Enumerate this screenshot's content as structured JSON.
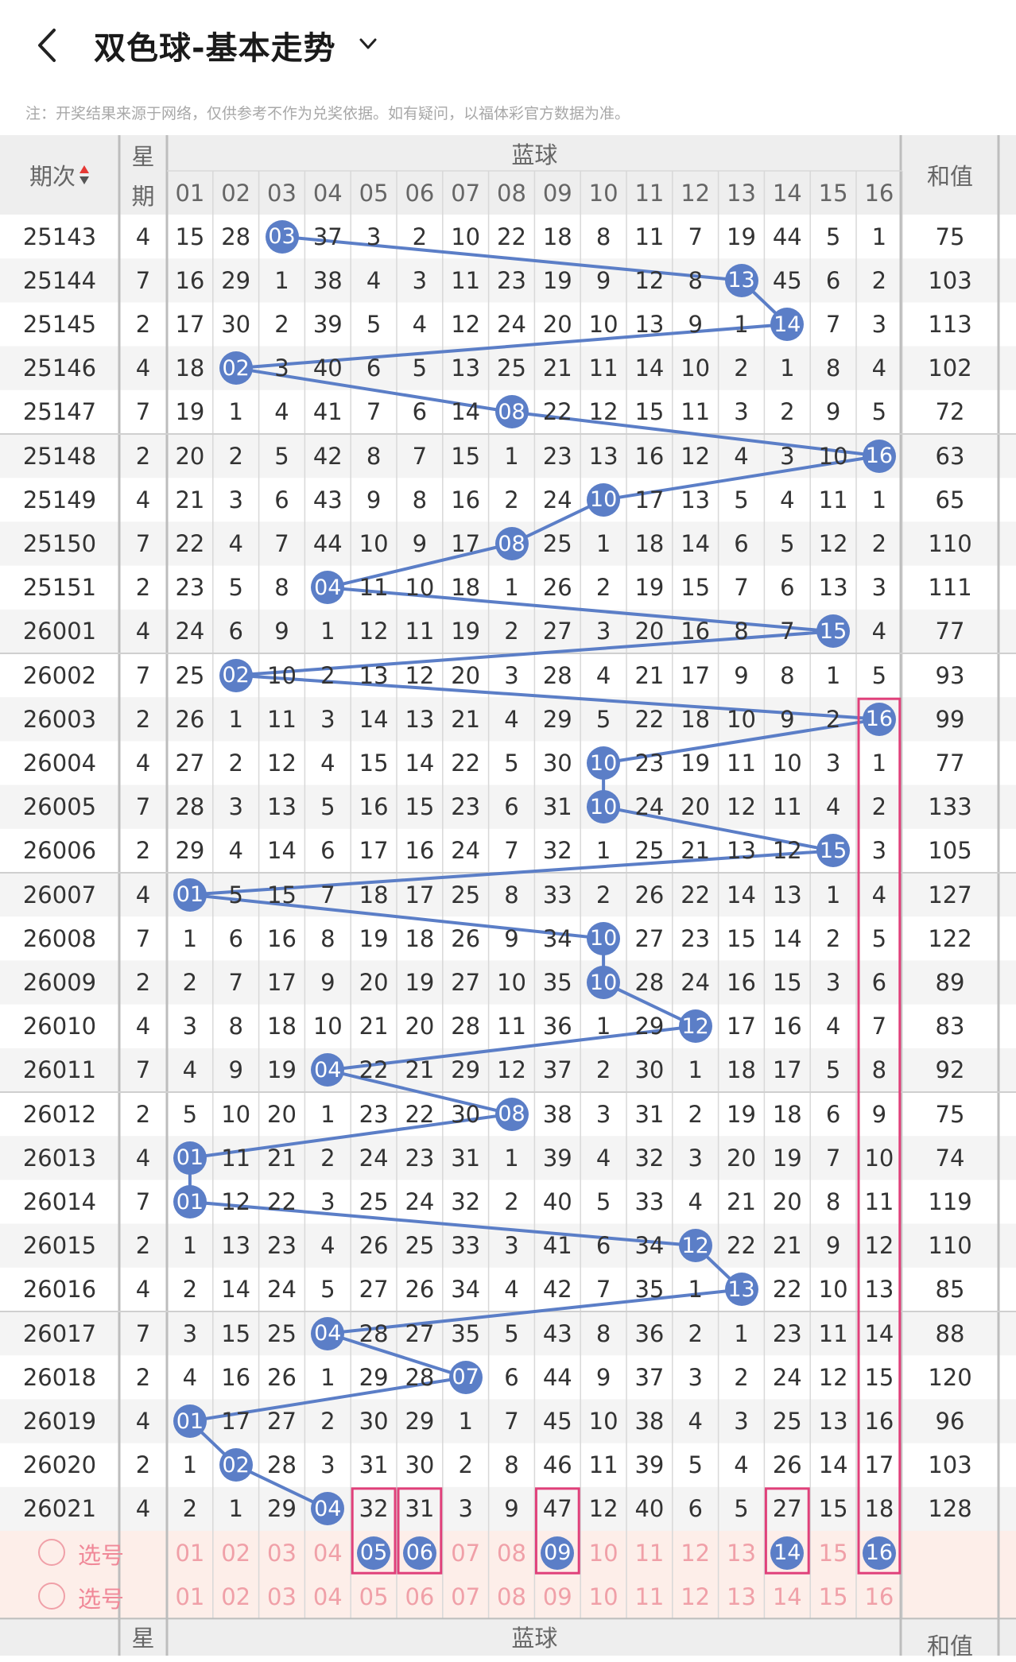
{
  "header": {
    "title": "双色球-基本走势"
  },
  "notice": "注：开奖结果来源于网络，仅供参考不作为兑奖依据。如有疑问，以福体彩官方数据为准。",
  "table": {
    "col_period": "期次",
    "col_week_top": "星",
    "col_week_bottom": "期",
    "col_blue": "蓝球",
    "col_sum": "和值",
    "blue_numbers": [
      "01",
      "02",
      "03",
      "04",
      "05",
      "06",
      "07",
      "08",
      "09",
      "10",
      "11",
      "12",
      "13",
      "14",
      "15",
      "16"
    ],
    "rows": [
      {
        "period": "25143",
        "week": "4",
        "hit": 3,
        "cells": [
          "15",
          "28",
          "03",
          "37",
          "3",
          "2",
          "10",
          "22",
          "18",
          "8",
          "11",
          "7",
          "19",
          "44",
          "5",
          "1"
        ],
        "sum": "75"
      },
      {
        "period": "25144",
        "week": "7",
        "hit": 13,
        "cells": [
          "16",
          "29",
          "1",
          "38",
          "4",
          "3",
          "11",
          "23",
          "19",
          "9",
          "12",
          "8",
          "13",
          "45",
          "6",
          "2"
        ],
        "sum": "103"
      },
      {
        "period": "25145",
        "week": "2",
        "hit": 14,
        "cells": [
          "17",
          "30",
          "2",
          "39",
          "5",
          "4",
          "12",
          "24",
          "20",
          "10",
          "13",
          "9",
          "1",
          "14",
          "7",
          "3"
        ],
        "sum": "113"
      },
      {
        "period": "25146",
        "week": "4",
        "hit": 2,
        "cells": [
          "18",
          "02",
          "3",
          "40",
          "6",
          "5",
          "13",
          "25",
          "21",
          "11",
          "14",
          "10",
          "2",
          "1",
          "8",
          "4"
        ],
        "sum": "102"
      },
      {
        "period": "25147",
        "week": "7",
        "hit": 8,
        "cells": [
          "19",
          "1",
          "4",
          "41",
          "7",
          "6",
          "14",
          "08",
          "22",
          "12",
          "15",
          "11",
          "3",
          "2",
          "9",
          "5"
        ],
        "sum": "72"
      },
      {
        "period": "25148",
        "week": "2",
        "hit": 16,
        "cells": [
          "20",
          "2",
          "5",
          "42",
          "8",
          "7",
          "15",
          "1",
          "23",
          "13",
          "16",
          "12",
          "4",
          "3",
          "10",
          "16"
        ],
        "sum": "63"
      },
      {
        "period": "25149",
        "week": "4",
        "hit": 10,
        "cells": [
          "21",
          "3",
          "6",
          "43",
          "9",
          "8",
          "16",
          "2",
          "24",
          "10",
          "17",
          "13",
          "5",
          "4",
          "11",
          "1"
        ],
        "sum": "65"
      },
      {
        "period": "25150",
        "week": "7",
        "hit": 8,
        "cells": [
          "22",
          "4",
          "7",
          "44",
          "10",
          "9",
          "17",
          "08",
          "25",
          "1",
          "18",
          "14",
          "6",
          "5",
          "12",
          "2"
        ],
        "sum": "110"
      },
      {
        "period": "25151",
        "week": "2",
        "hit": 4,
        "cells": [
          "23",
          "5",
          "8",
          "04",
          "11",
          "10",
          "18",
          "1",
          "26",
          "2",
          "19",
          "15",
          "7",
          "6",
          "13",
          "3"
        ],
        "sum": "111"
      },
      {
        "period": "26001",
        "week": "4",
        "hit": 15,
        "cells": [
          "24",
          "6",
          "9",
          "1",
          "12",
          "11",
          "19",
          "2",
          "27",
          "3",
          "20",
          "16",
          "8",
          "7",
          "15",
          "4"
        ],
        "sum": "77"
      },
      {
        "period": "26002",
        "week": "7",
        "hit": 2,
        "cells": [
          "25",
          "02",
          "10",
          "2",
          "13",
          "12",
          "20",
          "3",
          "28",
          "4",
          "21",
          "17",
          "9",
          "8",
          "1",
          "5"
        ],
        "sum": "93"
      },
      {
        "period": "26003",
        "week": "2",
        "hit": 16,
        "cells": [
          "26",
          "1",
          "11",
          "3",
          "14",
          "13",
          "21",
          "4",
          "29",
          "5",
          "22",
          "18",
          "10",
          "9",
          "2",
          "16"
        ],
        "sum": "99"
      },
      {
        "period": "26004",
        "week": "4",
        "hit": 10,
        "cells": [
          "27",
          "2",
          "12",
          "4",
          "15",
          "14",
          "22",
          "5",
          "30",
          "10",
          "23",
          "19",
          "11",
          "10",
          "3",
          "1"
        ],
        "sum": "77"
      },
      {
        "period": "26005",
        "week": "7",
        "hit": 10,
        "cells": [
          "28",
          "3",
          "13",
          "5",
          "16",
          "15",
          "23",
          "6",
          "31",
          "10",
          "24",
          "20",
          "12",
          "11",
          "4",
          "2"
        ],
        "sum": "133"
      },
      {
        "period": "26006",
        "week": "2",
        "hit": 15,
        "cells": [
          "29",
          "4",
          "14",
          "6",
          "17",
          "16",
          "24",
          "7",
          "32",
          "1",
          "25",
          "21",
          "13",
          "12",
          "15",
          "3"
        ],
        "sum": "105"
      },
      {
        "period": "26007",
        "week": "4",
        "hit": 1,
        "cells": [
          "01",
          "5",
          "15",
          "7",
          "18",
          "17",
          "25",
          "8",
          "33",
          "2",
          "26",
          "22",
          "14",
          "13",
          "1",
          "4"
        ],
        "sum": "127"
      },
      {
        "period": "26008",
        "week": "7",
        "hit": 10,
        "cells": [
          "1",
          "6",
          "16",
          "8",
          "19",
          "18",
          "26",
          "9",
          "34",
          "10",
          "27",
          "23",
          "15",
          "14",
          "2",
          "5"
        ],
        "sum": "122"
      },
      {
        "period": "26009",
        "week": "2",
        "hit": 10,
        "cells": [
          "2",
          "7",
          "17",
          "9",
          "20",
          "19",
          "27",
          "10",
          "35",
          "10",
          "28",
          "24",
          "16",
          "15",
          "3",
          "6"
        ],
        "sum": "89"
      },
      {
        "period": "26010",
        "week": "4",
        "hit": 12,
        "cells": [
          "3",
          "8",
          "18",
          "10",
          "21",
          "20",
          "28",
          "11",
          "36",
          "1",
          "29",
          "12",
          "17",
          "16",
          "4",
          "7"
        ],
        "sum": "83"
      },
      {
        "period": "26011",
        "week": "7",
        "hit": 4,
        "cells": [
          "4",
          "9",
          "19",
          "04",
          "22",
          "21",
          "29",
          "12",
          "37",
          "2",
          "30",
          "1",
          "18",
          "17",
          "5",
          "8"
        ],
        "sum": "92"
      },
      {
        "period": "26012",
        "week": "2",
        "hit": 8,
        "cells": [
          "5",
          "10",
          "20",
          "1",
          "23",
          "22",
          "30",
          "08",
          "38",
          "3",
          "31",
          "2",
          "19",
          "18",
          "6",
          "9"
        ],
        "sum": "75"
      },
      {
        "period": "26013",
        "week": "4",
        "hit": 1,
        "cells": [
          "01",
          "11",
          "21",
          "2",
          "24",
          "23",
          "31",
          "1",
          "39",
          "4",
          "32",
          "3",
          "20",
          "19",
          "7",
          "10"
        ],
        "sum": "74"
      },
      {
        "period": "26014",
        "week": "7",
        "hit": 1,
        "cells": [
          "01",
          "12",
          "22",
          "3",
          "25",
          "24",
          "32",
          "2",
          "40",
          "5",
          "33",
          "4",
          "21",
          "20",
          "8",
          "11"
        ],
        "sum": "119"
      },
      {
        "period": "26015",
        "week": "2",
        "hit": 12,
        "cells": [
          "1",
          "13",
          "23",
          "4",
          "26",
          "25",
          "33",
          "3",
          "41",
          "6",
          "34",
          "12",
          "22",
          "21",
          "9",
          "12"
        ],
        "sum": "110"
      },
      {
        "period": "26016",
        "week": "4",
        "hit": 13,
        "cells": [
          "2",
          "14",
          "24",
          "5",
          "27",
          "26",
          "34",
          "4",
          "42",
          "7",
          "35",
          "1",
          "13",
          "22",
          "10",
          "13"
        ],
        "sum": "85"
      },
      {
        "period": "26017",
        "week": "7",
        "hit": 4,
        "cells": [
          "3",
          "15",
          "25",
          "04",
          "28",
          "27",
          "35",
          "5",
          "43",
          "8",
          "36",
          "2",
          "1",
          "23",
          "11",
          "14"
        ],
        "sum": "88"
      },
      {
        "period": "26018",
        "week": "2",
        "hit": 7,
        "cells": [
          "4",
          "16",
          "26",
          "1",
          "29",
          "28",
          "07",
          "6",
          "44",
          "9",
          "37",
          "3",
          "2",
          "24",
          "12",
          "15"
        ],
        "sum": "120"
      },
      {
        "period": "26019",
        "week": "4",
        "hit": 1,
        "cells": [
          "01",
          "17",
          "27",
          "2",
          "30",
          "29",
          "1",
          "7",
          "45",
          "10",
          "38",
          "4",
          "3",
          "25",
          "13",
          "16"
        ],
        "sum": "96"
      },
      {
        "period": "26020",
        "week": "2",
        "hit": 2,
        "cells": [
          "1",
          "02",
          "28",
          "3",
          "31",
          "30",
          "2",
          "8",
          "46",
          "11",
          "39",
          "5",
          "4",
          "26",
          "14",
          "17"
        ],
        "sum": "103"
      },
      {
        "period": "26021",
        "week": "4",
        "hit": 4,
        "cells": [
          "2",
          "1",
          "29",
          "04",
          "32",
          "31",
          "3",
          "9",
          "47",
          "12",
          "40",
          "6",
          "5",
          "27",
          "15",
          "18"
        ],
        "sum": "128"
      }
    ],
    "pick_label": "选号",
    "pick_selected_row1": [
      5,
      6,
      9,
      14,
      16
    ]
  },
  "colors": {
    "ball": "#5b7ec7",
    "highlight": "#e0407a",
    "pick_bg": "#fdeee9",
    "pick_text": "#f0a0a8"
  }
}
